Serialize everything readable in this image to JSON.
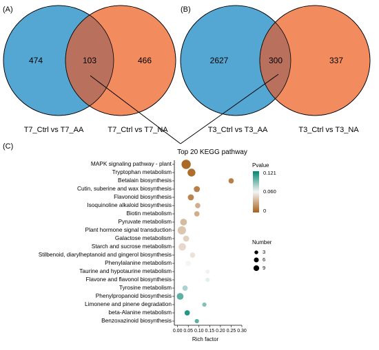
{
  "panels": {
    "a": "(A)",
    "b": "(B)",
    "c": "(C)"
  },
  "venn_a": {
    "left_label": "T7_Ctrl vs T7_AA",
    "right_label": "T7_Ctrl vs T7_NA",
    "left_only": "474",
    "overlap": "103",
    "right_only": "466"
  },
  "venn_b": {
    "left_label": "T3_Ctrl vs T3_AA",
    "right_label": "T3_Ctrl vs T3_NA",
    "left_only": "2627",
    "overlap": "300",
    "right_only": "337"
  },
  "colors": {
    "left_circle": "#54A7D2",
    "right_circle": "#F28C5E",
    "overlap": "#B9705D",
    "p_low": "#A6611A",
    "p_mid": "#F5F5F5",
    "p_high": "#018571"
  },
  "chart_data": {
    "type": "scatter",
    "title": "Top 20 KEGG pathway",
    "xlabel": "Rich factor",
    "ylabel": "",
    "xlim": [
      -0.015,
      0.3
    ],
    "x_ticks": [
      "0.00",
      "0.05",
      "0.10",
      "0.15",
      "0.20",
      "0.25",
      "0.30"
    ],
    "x_tick_values": [
      0.0,
      0.05,
      0.1,
      0.15,
      0.2,
      0.25,
      0.3
    ],
    "grid": false,
    "categories": [
      "MAPK signaling pathway - plant",
      "Tryptophan metabolism",
      "Betalain biosynthesis",
      "Cutin, suberine and wax biosynthesis",
      "Flavonoid biosynthesis",
      "Isoquinoline alkaloid biosynthesis",
      "Biotin metabolism",
      "Pyruvate metabolism",
      "Plant hormone signal transduction",
      "Galactose metabolism",
      "Starch and sucrose metabolism",
      "Stilbenoid, diarylheptanoid and gingerol biosynthesis",
      "Phenylalanine metabolism",
      "Taurine and hypotaurine metabolism",
      "Flavone and flavonol biosynthesis",
      "Tyrosine metabolism",
      "Phenylpropanoid biosynthesis",
      "Limonene and pinene degradation",
      "beta-Alanine metabolism",
      "Benzoxazinoid biosynthesis"
    ],
    "points": [
      {
        "pathway": "MAPK signaling pathway - plant",
        "rich_factor": 0.04,
        "pvalue": 0.0,
        "number": 9
      },
      {
        "pathway": "Tryptophan metabolism",
        "rich_factor": 0.065,
        "pvalue": 0.002,
        "number": 6
      },
      {
        "pathway": "Betalain biosynthesis",
        "rich_factor": 0.25,
        "pvalue": 0.01,
        "number": 2
      },
      {
        "pathway": "Cutin, suberine and wax biosynthesis",
        "rich_factor": 0.09,
        "pvalue": 0.01,
        "number": 3
      },
      {
        "pathway": "Flavonoid biosynthesis",
        "rich_factor": 0.062,
        "pvalue": 0.012,
        "number": 3
      },
      {
        "pathway": "Isoquinoline alkaloid biosynthesis",
        "rich_factor": 0.094,
        "pvalue": 0.03,
        "number": 2
      },
      {
        "pathway": "Biotin metabolism",
        "rich_factor": 0.09,
        "pvalue": 0.03,
        "number": 2
      },
      {
        "pathway": "Pyruvate metabolism",
        "rich_factor": 0.028,
        "pvalue": 0.035,
        "number": 4
      },
      {
        "pathway": "Plant hormone signal transduction",
        "rich_factor": 0.02,
        "pvalue": 0.04,
        "number": 7
      },
      {
        "pathway": "Galactose metabolism",
        "rich_factor": 0.04,
        "pvalue": 0.045,
        "number": 3
      },
      {
        "pathway": "Starch and sucrose metabolism",
        "rich_factor": 0.022,
        "pvalue": 0.048,
        "number": 5
      },
      {
        "pathway": "Stilbenoid, diarylheptanoid and gingerol biosynthesis",
        "rich_factor": 0.07,
        "pvalue": 0.052,
        "number": 2
      },
      {
        "pathway": "Phenylalanine metabolism",
        "rich_factor": 0.05,
        "pvalue": 0.06,
        "number": 2
      },
      {
        "pathway": "Taurine and hypotaurine metabolism",
        "rich_factor": 0.14,
        "pvalue": 0.062,
        "number": 1
      },
      {
        "pathway": "Flavone and flavonol biosynthesis",
        "rich_factor": 0.14,
        "pvalue": 0.065,
        "number": 1
      },
      {
        "pathway": "Tyrosine metabolism",
        "rich_factor": 0.035,
        "pvalue": 0.08,
        "number": 2
      },
      {
        "pathway": "Phenylpropanoid biosynthesis",
        "rich_factor": 0.012,
        "pvalue": 0.1,
        "number": 4
      },
      {
        "pathway": "Limonene and pinene degradation",
        "rich_factor": 0.125,
        "pvalue": 0.09,
        "number": 1
      },
      {
        "pathway": "beta-Alanine metabolism",
        "rich_factor": 0.045,
        "pvalue": 0.115,
        "number": 2
      },
      {
        "pathway": "Benzoxazinoid biosynthesis",
        "rich_factor": 0.09,
        "pvalue": 0.1,
        "number": 1
      }
    ],
    "color_legend": {
      "title": "Pvalue",
      "labels": [
        "0.121",
        "0.060",
        "0"
      ],
      "values": [
        0.121,
        0.06,
        0.0
      ]
    },
    "size_legend": {
      "title": "Number",
      "labels": [
        "3",
        "6",
        "9"
      ],
      "values": [
        3,
        6,
        9
      ]
    }
  }
}
